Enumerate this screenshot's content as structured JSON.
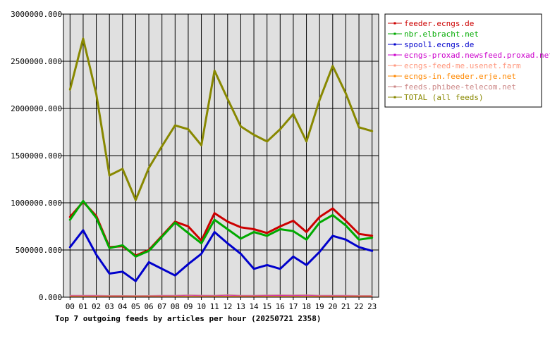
{
  "chart_data": {
    "type": "line",
    "caption": "Top 7 outgoing feeds by articles per hour (20250721 2358)",
    "x": [
      "00",
      "01",
      "02",
      "03",
      "04",
      "05",
      "06",
      "07",
      "08",
      "09",
      "10",
      "11",
      "12",
      "13",
      "14",
      "15",
      "16",
      "17",
      "18",
      "19",
      "20",
      "21",
      "22",
      "23"
    ],
    "y_ticks": [
      "0.000",
      "500000.000",
      "1000000.000",
      "1500000.000",
      "2000000.000",
      "2500000.000",
      "3000000.000"
    ],
    "ylim": [
      0,
      3000000
    ],
    "grid": true,
    "legend_position": "right",
    "plot_background": "#e0e0e0",
    "series": [
      {
        "name": "feeder.ecngs.de",
        "color": "#cc0000",
        "width": 3,
        "values": [
          850000,
          1010000,
          860000,
          530000,
          540000,
          440000,
          500000,
          650000,
          800000,
          750000,
          600000,
          890000,
          800000,
          740000,
          720000,
          680000,
          750000,
          810000,
          690000,
          850000,
          940000,
          810000,
          670000,
          650000
        ]
      },
      {
        "name": "nbr.elbracht.net",
        "color": "#00aa00",
        "width": 3,
        "values": [
          820000,
          1020000,
          840000,
          520000,
          550000,
          430000,
          490000,
          640000,
          790000,
          680000,
          570000,
          820000,
          720000,
          620000,
          690000,
          650000,
          720000,
          700000,
          610000,
          790000,
          870000,
          760000,
          610000,
          630000
        ]
      },
      {
        "name": "spool1.ecngs.de",
        "color": "#0000cc",
        "width": 3,
        "values": [
          530000,
          710000,
          450000,
          250000,
          270000,
          170000,
          370000,
          300000,
          230000,
          350000,
          460000,
          690000,
          570000,
          460000,
          300000,
          340000,
          300000,
          430000,
          340000,
          480000,
          650000,
          610000,
          530000,
          490000
        ]
      },
      {
        "name": "ecngs-proxad.newsfeed.proxad.net",
        "color": "#cc00cc",
        "width": 1,
        "values": [
          15000,
          16000,
          15000,
          14000,
          14000,
          13000,
          14000,
          15000,
          16000,
          20000,
          17000,
          16000,
          22000,
          16000,
          15000,
          18000,
          19000,
          18000,
          20000,
          16000,
          15000,
          15000,
          14000,
          14000
        ]
      },
      {
        "name": "ecngs-feed-me.usenet.farm",
        "color": "#ff9980",
        "width": 1,
        "values": [
          9000,
          9000,
          9000,
          8000,
          8000,
          8000,
          8000,
          9000,
          9000,
          10000,
          9000,
          9000,
          11000,
          9000,
          9000,
          10000,
          10000,
          10000,
          10000,
          9000,
          9000,
          9000,
          8000,
          8000
        ]
      },
      {
        "name": "ecngs-in.feeder.erje.net",
        "color": "#ff8800",
        "width": 1,
        "values": [
          7000,
          7000,
          7000,
          6000,
          6000,
          6000,
          6000,
          7000,
          7000,
          8000,
          7000,
          7000,
          8000,
          7000,
          7000,
          8000,
          8000,
          8000,
          8000,
          7000,
          7000,
          7000,
          6000,
          6000
        ]
      },
      {
        "name": "feeds.phibee-telecom.net",
        "color": "#cc8888",
        "width": 1,
        "values": [
          20000,
          21000,
          20000,
          19000,
          19000,
          18000,
          19000,
          20000,
          21000,
          24000,
          22000,
          21000,
          26000,
          21000,
          20000,
          23000,
          24000,
          23000,
          25000,
          21000,
          20000,
          20000,
          19000,
          19000
        ]
      },
      {
        "name": "TOTAL (all feeds)",
        "color": "#888800",
        "width": 3,
        "values": [
          2200000,
          2740000,
          2150000,
          1290000,
          1360000,
          1030000,
          1370000,
          1600000,
          1820000,
          1780000,
          1610000,
          2400000,
          2100000,
          1810000,
          1720000,
          1650000,
          1780000,
          1940000,
          1650000,
          2090000,
          2450000,
          2160000,
          1800000,
          1760000
        ]
      }
    ]
  }
}
